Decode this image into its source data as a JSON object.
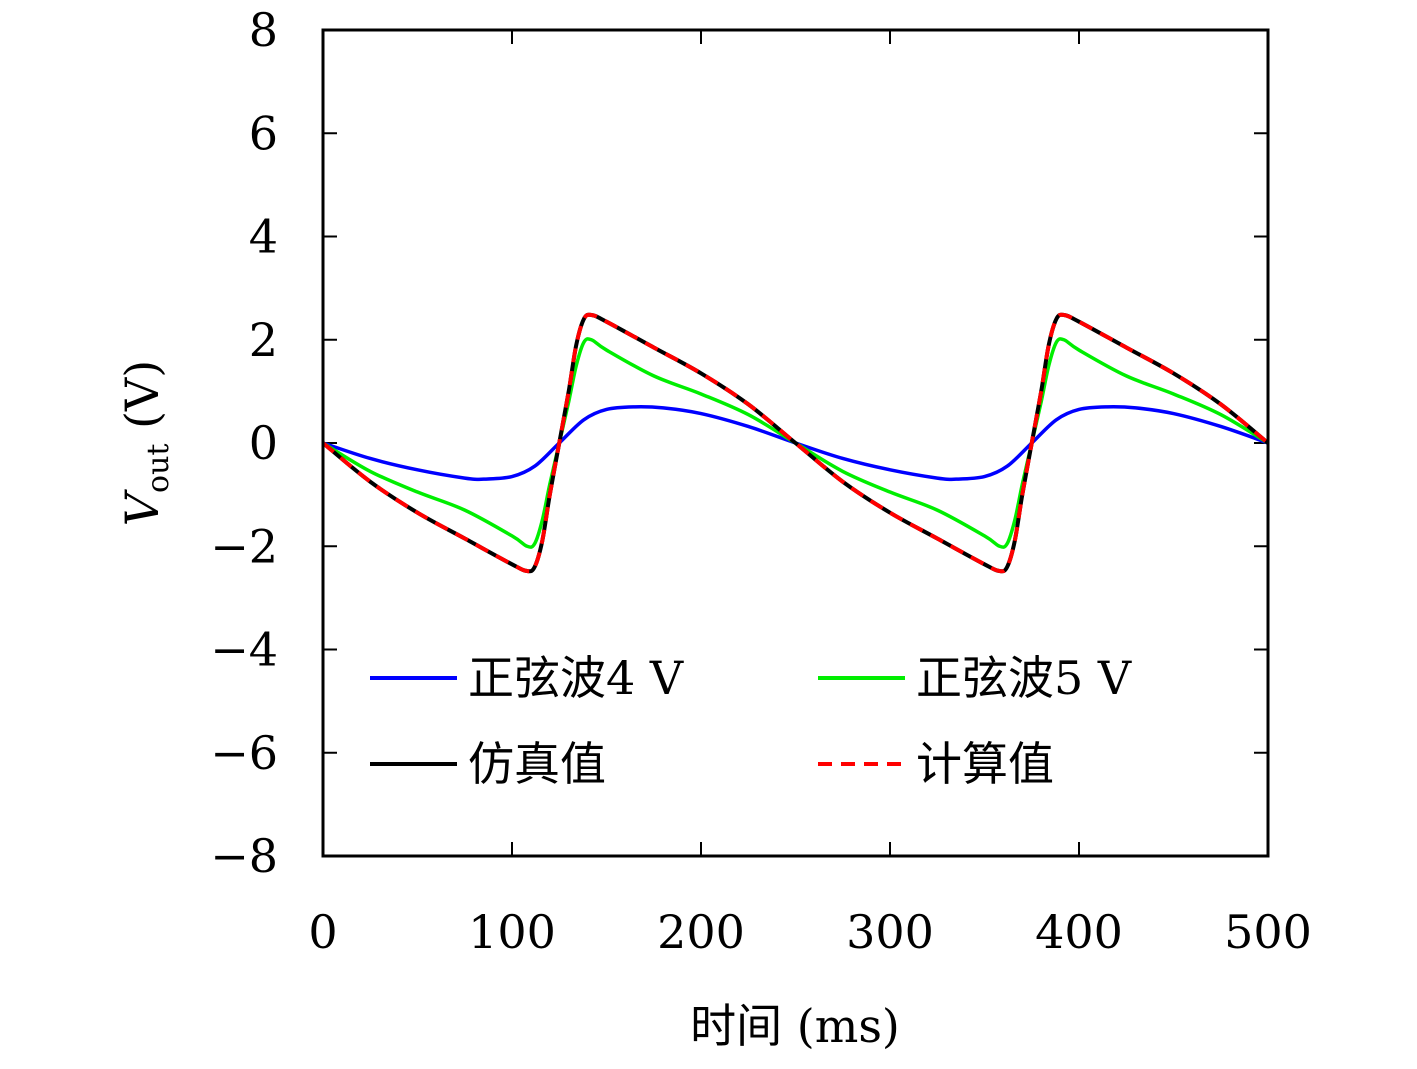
{
  "chart_data": {
    "type": "line",
    "xlabel": "时间 (ms)",
    "ylabel_main": "V",
    "ylabel_sub": "out",
    "ylabel_unit": " (V)",
    "xlim": [
      0,
      500
    ],
    "ylim": [
      -8,
      8
    ],
    "xticks": [
      0,
      100,
      200,
      300,
      400,
      500
    ],
    "yticks": [
      -8,
      -6,
      -4,
      -2,
      0,
      2,
      4,
      6,
      8
    ],
    "xtick_labels": [
      "0",
      "100",
      "200",
      "300",
      "400",
      "500"
    ],
    "ytick_labels": [
      "−8",
      "−6",
      "−4",
      "−2",
      "0",
      "2",
      "4",
      "6",
      "8"
    ],
    "grid": false,
    "legend_position": "bottom-center inside",
    "series": [
      {
        "name": "正弦波4 V",
        "color": "#0000ff",
        "dash": "solid",
        "x": [
          0,
          25,
          50,
          75,
          85,
          100,
          112,
          125,
          138,
          150,
          165,
          180,
          200,
          225,
          250,
          275,
          300,
          325,
          335,
          350,
          362,
          375,
          388,
          400,
          415,
          430,
          450,
          475,
          500
        ],
        "y": [
          0,
          -0.3,
          -0.52,
          -0.68,
          -0.7,
          -0.65,
          -0.45,
          0,
          0.45,
          0.65,
          0.7,
          0.68,
          0.57,
          0.32,
          0,
          -0.3,
          -0.52,
          -0.68,
          -0.7,
          -0.65,
          -0.45,
          0,
          0.45,
          0.65,
          0.7,
          0.68,
          0.57,
          0.32,
          0
        ]
      },
      {
        "name": "正弦波5 V",
        "color": "#00ee00",
        "dash": "solid",
        "x": [
          0,
          25,
          50,
          75,
          100,
          108,
          112,
          116,
          120,
          125,
          130,
          134,
          138,
          142,
          150,
          175,
          200,
          225,
          250,
          275,
          300,
          325,
          350,
          358,
          362,
          366,
          370,
          375,
          380,
          384,
          388,
          392,
          400,
          425,
          450,
          475,
          500
        ],
        "y": [
          0,
          -0.55,
          -0.95,
          -1.3,
          -1.8,
          -2.0,
          -1.95,
          -1.5,
          -0.8,
          0,
          0.8,
          1.5,
          1.95,
          2.0,
          1.8,
          1.3,
          0.95,
          0.55,
          0,
          -0.55,
          -0.95,
          -1.3,
          -1.8,
          -2.0,
          -1.95,
          -1.5,
          -0.8,
          0,
          0.8,
          1.5,
          1.95,
          2.0,
          1.8,
          1.3,
          0.95,
          0.55,
          0
        ]
      },
      {
        "name": "仿真值",
        "color": "#000000",
        "dash": "solid",
        "x": [
          0,
          25,
          50,
          75,
          100,
          108,
          112,
          116,
          120,
          125,
          130,
          134,
          138,
          142,
          150,
          175,
          200,
          225,
          250,
          275,
          300,
          325,
          350,
          358,
          362,
          366,
          370,
          375,
          380,
          384,
          388,
          392,
          400,
          425,
          450,
          475,
          500
        ],
        "y": [
          0,
          -0.75,
          -1.35,
          -1.85,
          -2.35,
          -2.48,
          -2.4,
          -1.9,
          -1.0,
          0,
          1.0,
          1.9,
          2.4,
          2.48,
          2.35,
          1.85,
          1.35,
          0.75,
          0,
          -0.75,
          -1.35,
          -1.85,
          -2.35,
          -2.48,
          -2.4,
          -1.9,
          -1.0,
          0,
          1.0,
          1.9,
          2.4,
          2.48,
          2.35,
          1.85,
          1.35,
          0.75,
          0
        ]
      },
      {
        "name": "计算值",
        "color": "#ff0000",
        "dash": "dashed",
        "x": [
          0,
          25,
          50,
          75,
          100,
          108,
          112,
          116,
          120,
          125,
          130,
          134,
          138,
          142,
          150,
          175,
          200,
          225,
          250,
          275,
          300,
          325,
          350,
          358,
          362,
          366,
          370,
          375,
          380,
          384,
          388,
          392,
          400,
          425,
          450,
          475,
          500
        ],
        "y": [
          0,
          -0.75,
          -1.35,
          -1.85,
          -2.35,
          -2.48,
          -2.4,
          -1.9,
          -1.0,
          0,
          1.0,
          1.9,
          2.4,
          2.48,
          2.35,
          1.85,
          1.35,
          0.75,
          0,
          -0.75,
          -1.35,
          -1.85,
          -2.35,
          -2.48,
          -2.4,
          -1.9,
          -1.0,
          0,
          1.0,
          1.9,
          2.4,
          2.48,
          2.35,
          1.85,
          1.35,
          0.75,
          0
        ]
      }
    ]
  }
}
